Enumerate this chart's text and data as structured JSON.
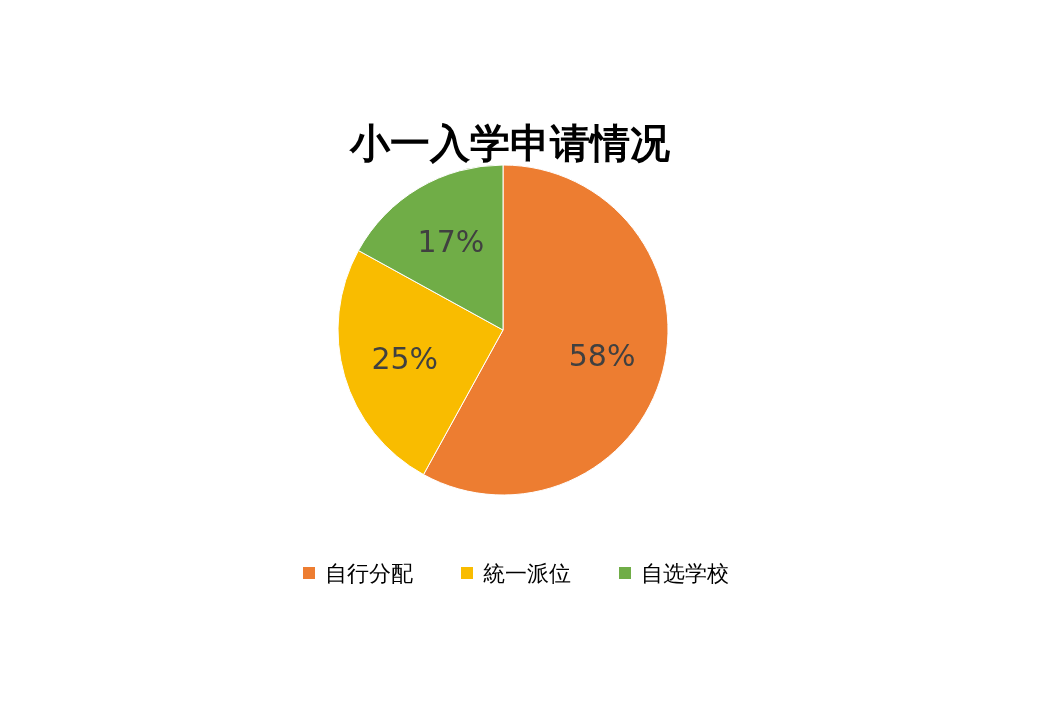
{
  "chart_data": {
    "type": "pie",
    "title": "小一入学申请情况",
    "categories": [
      "自行分配",
      "統一派位",
      "自选学校"
    ],
    "values": [
      58,
      25,
      17
    ],
    "value_labels": [
      "58%",
      "25%",
      "17%"
    ],
    "colors": [
      "#ed7d31",
      "#f9bc00",
      "#70ad47"
    ],
    "legend": "bottom"
  }
}
